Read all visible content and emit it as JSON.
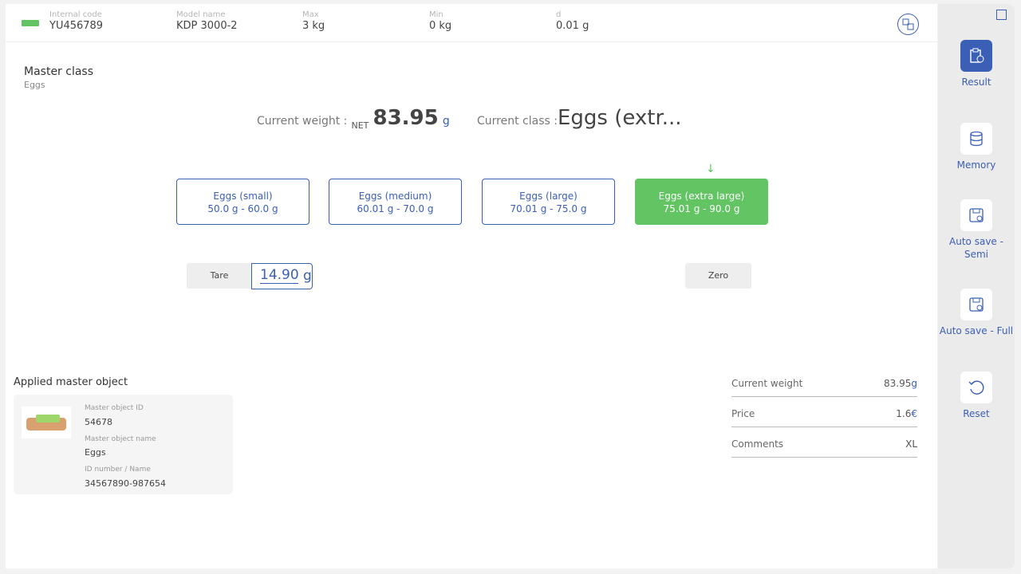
{
  "header": {
    "fields": [
      {
        "label": "Internal code",
        "value": "YU456789"
      },
      {
        "label": "Model name",
        "value": "KDP 3000-2"
      },
      {
        "label": "Max",
        "value": "3 kg"
      },
      {
        "label": "Min",
        "value": "0 kg"
      },
      {
        "label": "d",
        "value": "0.01 g"
      }
    ]
  },
  "master_class": {
    "title": "Master class",
    "value": "Eggs"
  },
  "weight": {
    "label": "Current weight :",
    "net": "NET",
    "value": "83.95",
    "unit": "g"
  },
  "current_class": {
    "label": "Current class :",
    "value": "Eggs (extr..."
  },
  "classes": [
    {
      "name": "Eggs (small)",
      "range": "50.0 g - 60.0 g",
      "active": false
    },
    {
      "name": "Eggs (medium)",
      "range": "60.01 g - 70.0 g",
      "active": false
    },
    {
      "name": "Eggs (large)",
      "range": "70.01 g - 75.0 g",
      "active": false
    },
    {
      "name": "Eggs (extra large)",
      "range": "75.01 g - 90.0 g",
      "active": true
    }
  ],
  "tare": {
    "label": "Tare",
    "value": "14.90",
    "unit": "g"
  },
  "zero": {
    "label": "Zero"
  },
  "master_object": {
    "title": "Applied master object",
    "id_label": "Master object ID",
    "id": "54678",
    "name_label": "Master object name",
    "name": "Eggs",
    "idn_label": "ID number / Name",
    "idn": "34567890-987654"
  },
  "summary": [
    {
      "label": "Current weight",
      "value": "83.95",
      "unit": "g"
    },
    {
      "label": "Price",
      "value": "1.6",
      "unit": "€"
    },
    {
      "label": "Comments",
      "value": "XL",
      "unit": ""
    }
  ],
  "sidebar": [
    {
      "label": "Result",
      "icon": "clipboard-check-icon",
      "active": true
    },
    {
      "label": "Memory",
      "icon": "database-icon",
      "active": false
    },
    {
      "label": "Auto save - Semi",
      "icon": "save-icon",
      "active": false
    },
    {
      "label": "Auto save - Full",
      "icon": "save-icon",
      "active": false
    },
    {
      "label": "Reset",
      "icon": "reset-icon",
      "active": false
    }
  ],
  "colors": {
    "accent": "#3a5fb5",
    "active_class": "#62c462"
  }
}
